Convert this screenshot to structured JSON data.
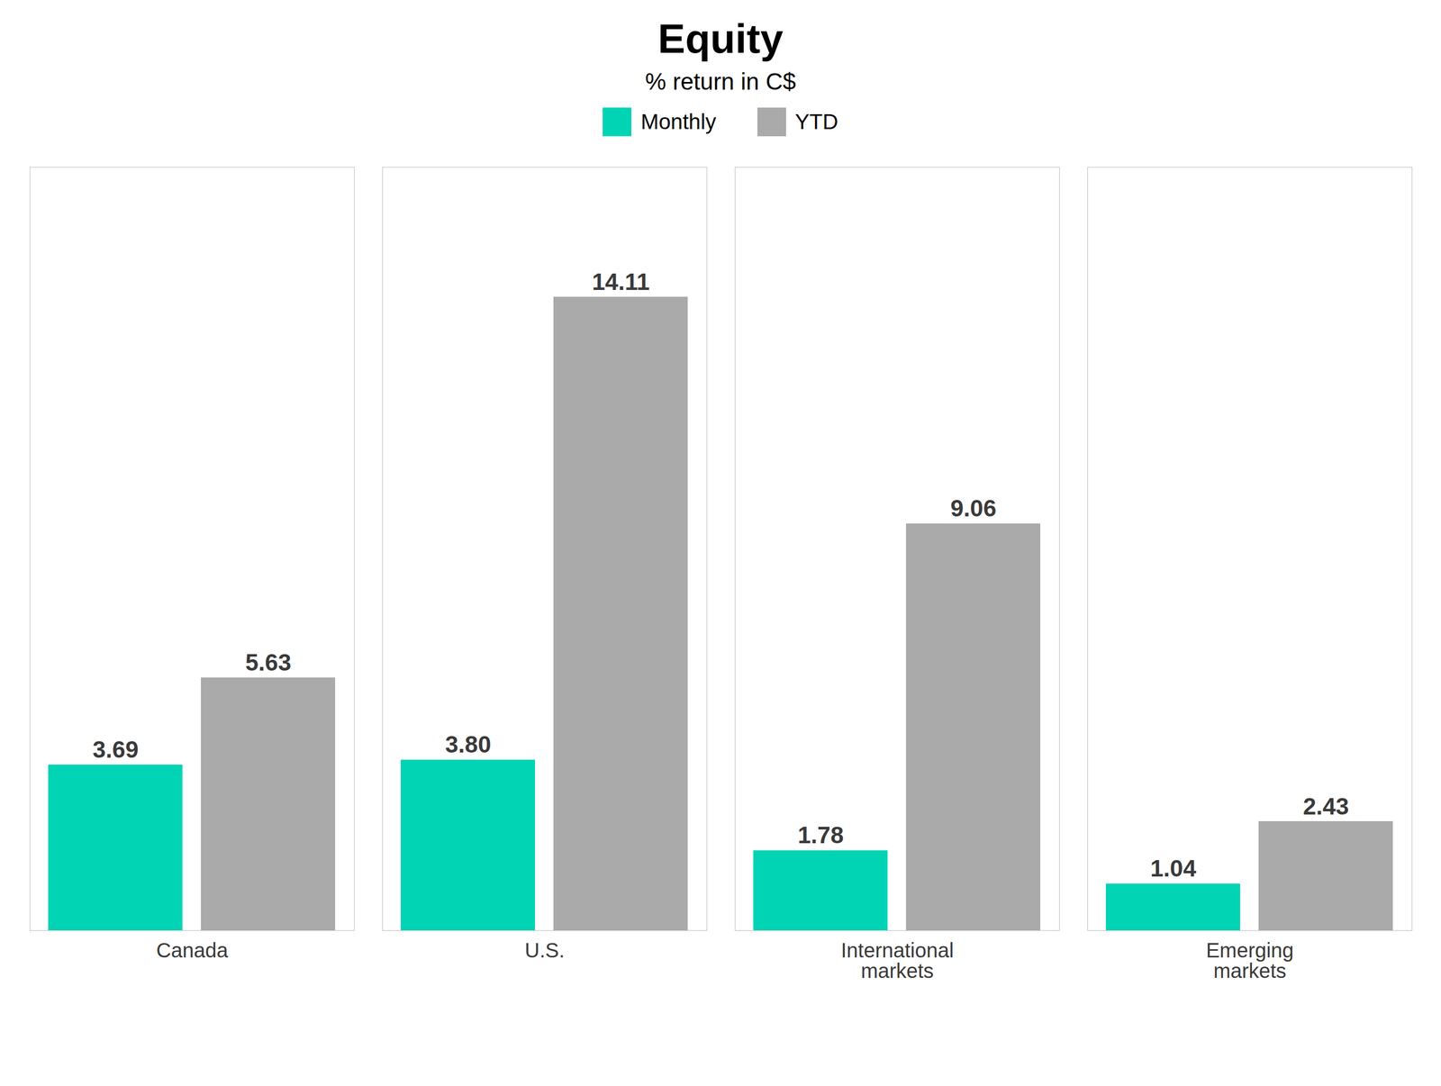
{
  "chart_data": {
    "type": "bar",
    "title": "Equity",
    "subtitle": "% return in C$",
    "categories": [
      "Canada",
      "U.S.",
      "International\nmarkets",
      "Emerging\nmarkets"
    ],
    "series": [
      {
        "name": "Monthly",
        "color": "#00D4B4",
        "values": [
          3.69,
          3.8,
          1.78,
          1.04
        ],
        "value_labels": [
          "3.69",
          "3.80",
          "1.78",
          "1.04"
        ]
      },
      {
        "name": "YTD",
        "color": "#AAAAAA",
        "values": [
          5.63,
          14.11,
          9.06,
          2.43
        ],
        "value_labels": [
          "5.63",
          "14.11",
          "9.06",
          "2.43"
        ]
      }
    ],
    "ylim": [
      0,
      17
    ],
    "tick_labels": "x",
    "data_labels": true,
    "legend": "top",
    "grid": false
  }
}
